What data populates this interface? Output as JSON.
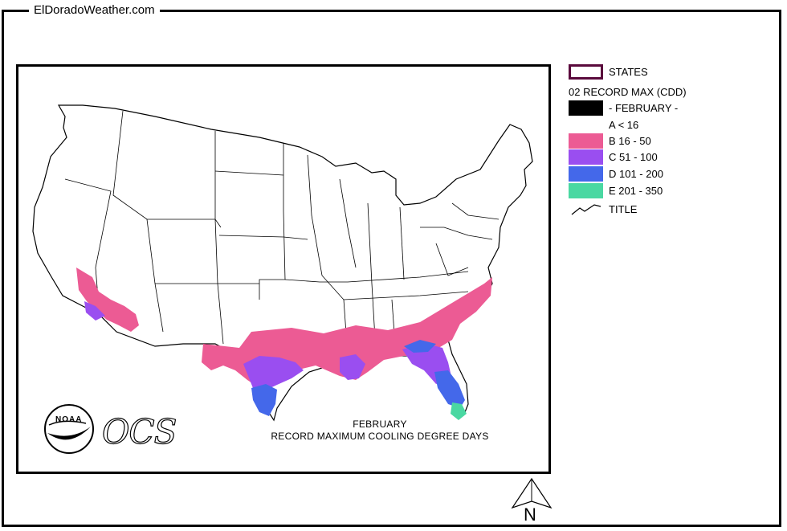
{
  "site": {
    "label": "ElDoradoWeather.com"
  },
  "map": {
    "title_line1": "FEBRUARY",
    "title_line2": "RECORD MAXIMUM COOLING DEGREE DAYS",
    "logo_text": "NOAA",
    "ocs_text": "OCS",
    "north_label": "N"
  },
  "legend": {
    "states_label": "STATES",
    "layer_label": "02 RECORD MAX (CDD)",
    "month_label": "- FEBRUARY -",
    "classes": [
      {
        "label": "A < 16",
        "color": "#ffffff"
      },
      {
        "label": "B 16 - 50",
        "color": "#ec5b94"
      },
      {
        "label": "C 51 - 100",
        "color": "#9a4ef0"
      },
      {
        "label": "D 101 - 200",
        "color": "#4468ea"
      },
      {
        "label": "E 201 - 350",
        "color": "#4ad8a2"
      }
    ],
    "title_label": "TITLE",
    "states_border_color": "#5a0a3c"
  }
}
